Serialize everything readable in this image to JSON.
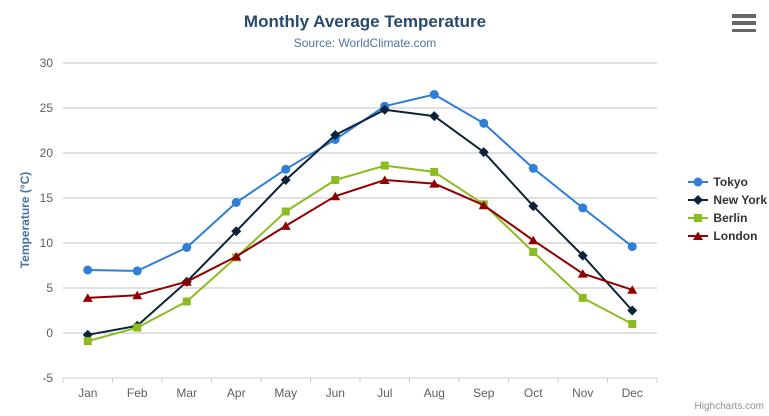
{
  "chart_data": {
    "type": "line",
    "title": "Monthly Average Temperature",
    "subtitle": "Source: WorldClimate.com",
    "xlabel": "",
    "ylabel": "Temperature (°C)",
    "categories": [
      "Jan",
      "Feb",
      "Mar",
      "Apr",
      "May",
      "Jun",
      "Jul",
      "Aug",
      "Sep",
      "Oct",
      "Nov",
      "Dec"
    ],
    "ylim": [
      -5,
      30
    ],
    "yticks": [
      -5,
      0,
      5,
      10,
      15,
      20,
      25,
      30
    ],
    "grid": true,
    "legend_position": "right",
    "series": [
      {
        "name": "Tokyo",
        "color": "#2f7ed8",
        "marker": "circle",
        "values": [
          7.0,
          6.9,
          9.5,
          14.5,
          18.2,
          21.5,
          25.2,
          26.5,
          23.3,
          18.3,
          13.9,
          9.6
        ]
      },
      {
        "name": "New York",
        "color": "#0d233a",
        "marker": "diamond",
        "values": [
          -0.2,
          0.8,
          5.7,
          11.3,
          17.0,
          22.0,
          24.8,
          24.1,
          20.1,
          14.1,
          8.6,
          2.5
        ]
      },
      {
        "name": "Berlin",
        "color": "#8bbc21",
        "marker": "square",
        "values": [
          -0.9,
          0.6,
          3.5,
          8.4,
          13.5,
          17.0,
          18.6,
          17.9,
          14.3,
          9.0,
          3.9,
          1.0
        ]
      },
      {
        "name": "London",
        "color": "#910000",
        "marker": "triangle",
        "values": [
          3.9,
          4.2,
          5.7,
          8.5,
          11.9,
          15.2,
          17.0,
          16.6,
          14.2,
          10.3,
          6.6,
          4.8
        ]
      }
    ]
  },
  "colors": {
    "title": "#274b6d",
    "subtitle": "#4d759e",
    "axis_title": "#4572a7",
    "axis_label": "#606060",
    "gridline": "#c0c0c0",
    "axis_line": "#c0d0e0",
    "legend_text": "#333333",
    "menu_icon": "#666666",
    "credits": "#909090",
    "background": "#ffffff"
  },
  "menu": {
    "icon": "hamburger-icon"
  },
  "credits": {
    "label": "Highcharts.com"
  }
}
